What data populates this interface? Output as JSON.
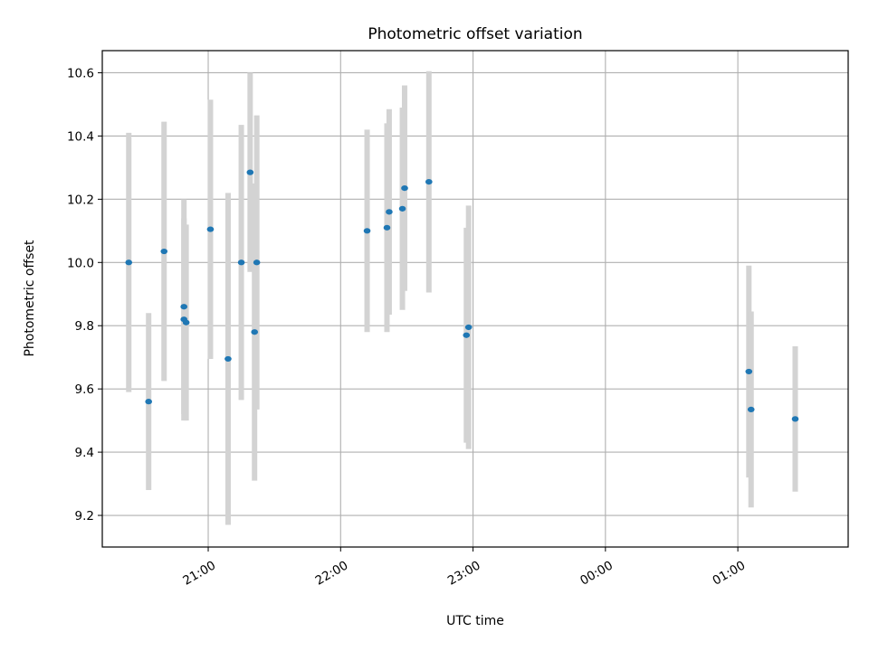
{
  "chart_data": {
    "type": "scatter",
    "title": "Photometric offset variation",
    "xlabel": "UTC time",
    "ylabel": "Photometric offset",
    "x_ticks": [
      "21:00",
      "22:00",
      "23:00",
      "00:00",
      "01:00"
    ],
    "y_ticks": [
      "9.2",
      "9.4",
      "9.6",
      "9.8",
      "10.0",
      "10.2",
      "10.4",
      "10.6"
    ],
    "xlim": [
      "20:12",
      "01:50"
    ],
    "ylim": [
      9.1,
      10.67
    ],
    "grid": true,
    "marker_color": "#1f77b4",
    "errorbar_color": "#d3d3d3",
    "points": [
      {
        "x": "20:24",
        "y": 10.0,
        "err": 0.41
      },
      {
        "x": "20:33",
        "y": 9.56,
        "err": 0.28
      },
      {
        "x": "20:40",
        "y": 10.035,
        "err": 0.41
      },
      {
        "x": "20:49",
        "y": 9.86,
        "err": 0.34
      },
      {
        "x": "20:49",
        "y": 9.82,
        "err": 0.32
      },
      {
        "x": "20:50",
        "y": 9.81,
        "err": 0.31
      },
      {
        "x": "21:01",
        "y": 10.105,
        "err": 0.41
      },
      {
        "x": "21:09",
        "y": 9.695,
        "err": 0.525
      },
      {
        "x": "21:15",
        "y": 10.0,
        "err": 0.435
      },
      {
        "x": "21:19",
        "y": 10.285,
        "err": 0.315
      },
      {
        "x": "21:21",
        "y": 9.78,
        "err": 0.47
      },
      {
        "x": "21:22",
        "y": 10.0,
        "err": 0.465
      },
      {
        "x": "22:12",
        "y": 10.1,
        "err": 0.32
      },
      {
        "x": "22:21",
        "y": 10.11,
        "err": 0.33
      },
      {
        "x": "22:22",
        "y": 10.16,
        "err": 0.325
      },
      {
        "x": "22:28",
        "y": 10.17,
        "err": 0.32
      },
      {
        "x": "22:29",
        "y": 10.235,
        "err": 0.325
      },
      {
        "x": "22:40",
        "y": 10.255,
        "err": 0.35
      },
      {
        "x": "22:57",
        "y": 9.77,
        "err": 0.34
      },
      {
        "x": "22:58",
        "y": 9.795,
        "err": 0.385
      },
      {
        "x": "01:05",
        "y": 9.655,
        "err": 0.335
      },
      {
        "x": "01:06",
        "y": 9.535,
        "err": 0.31
      },
      {
        "x": "01:26",
        "y": 9.505,
        "err": 0.23
      }
    ]
  }
}
